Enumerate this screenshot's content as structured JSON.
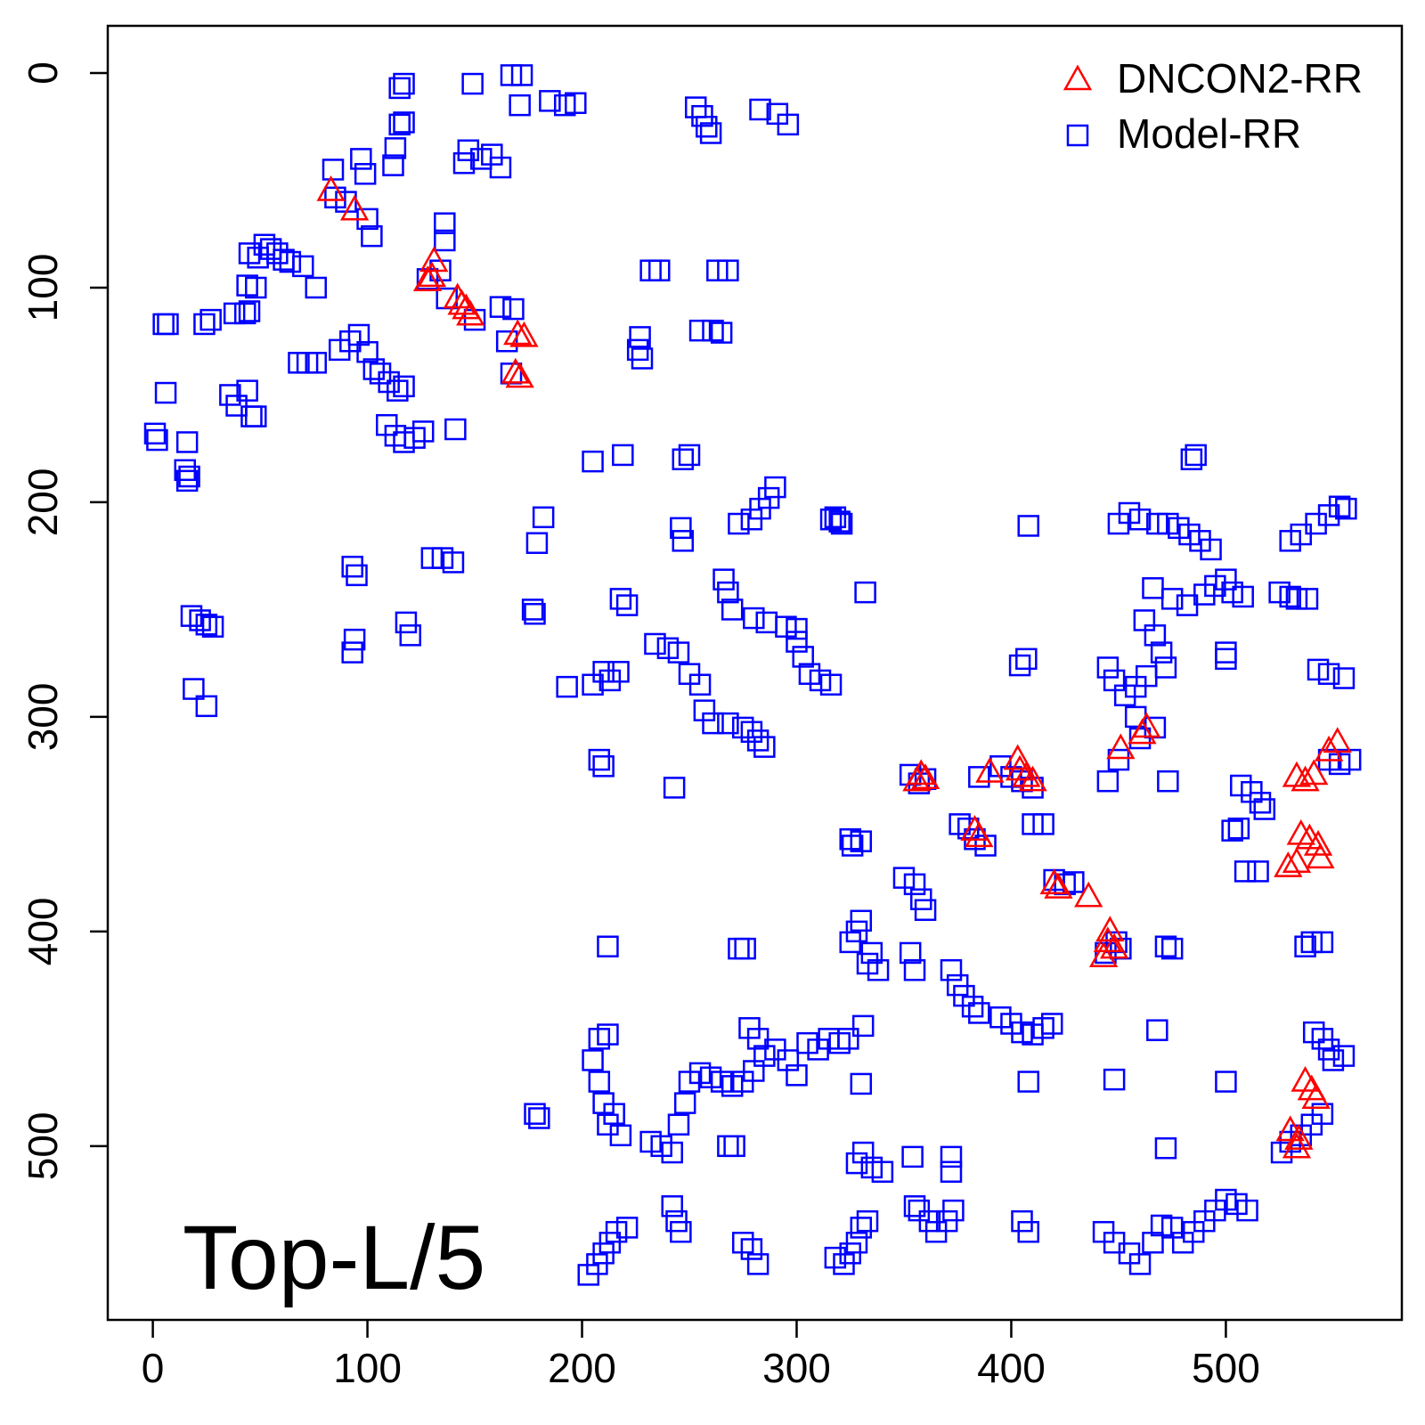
{
  "chart_data": {
    "type": "scatter",
    "annotation": "Top-L/5",
    "xlim": [
      -21,
      582
    ],
    "ylim": [
      581,
      -22
    ],
    "xticks": [
      0,
      100,
      200,
      300,
      400,
      500
    ],
    "yticks": [
      0,
      100,
      200,
      300,
      400,
      500
    ],
    "legend": "top-right",
    "series": [
      {
        "name": "DNCON2-RR",
        "color": "#ff0000",
        "marker": "triangle",
        "x": [
          83,
          94,
          131,
          130,
          128,
          142,
          144,
          146,
          148,
          170,
          173,
          169,
          171,
          358,
          360,
          356,
          390,
          403,
          404,
          407,
          410,
          383,
          385,
          420,
          422,
          436,
          446,
          445,
          448,
          443,
          451,
          461,
          463,
          552,
          548,
          533,
          537,
          541,
          535,
          539,
          543,
          544,
          533,
          529,
          537,
          540,
          542,
          530,
          534,
          533
        ],
        "y": [
          55,
          64,
          88,
          95,
          97,
          105,
          108,
          110,
          113,
          122,
          123,
          140,
          142,
          327,
          329,
          330,
          326,
          320,
          325,
          328,
          330,
          353,
          356,
          378,
          380,
          384,
          400,
          405,
          408,
          412,
          315,
          308,
          305,
          312,
          316,
          328,
          330,
          327,
          355,
          357,
          360,
          366,
          368,
          370,
          470,
          474,
          478,
          493,
          497,
          501
        ]
      },
      {
        "name": "Model-RR",
        "color": "#0000ff",
        "marker": "square",
        "x": [
          115,
          117,
          149,
          167,
          172,
          171,
          185,
          192,
          197,
          253,
          256,
          258,
          260,
          283,
          291,
          296,
          115,
          117,
          113,
          112,
          97,
          99,
          84,
          85,
          90,
          100,
          102,
          136,
          136,
          145,
          147,
          153,
          158,
          162,
          52,
          55,
          58,
          61,
          64,
          70,
          45,
          49,
          44,
          48,
          76,
          38,
          43,
          45,
          5,
          7,
          24,
          27,
          6,
          36,
          39,
          44,
          46,
          48,
          1,
          2,
          16,
          15,
          16,
          17,
          68,
          72,
          76,
          87,
          92,
          96,
          100,
          103,
          106,
          110,
          114,
          117,
          109,
          113,
          117,
          122,
          126,
          141,
          128,
          134,
          137,
          150,
          162,
          168,
          165,
          167,
          205,
          219,
          250,
          247,
          182,
          179,
          177,
          178,
          93,
          95,
          130,
          135,
          140,
          118,
          120,
          94,
          93,
          18,
          22,
          25,
          28,
          19,
          25,
          210,
          213,
          217,
          205,
          193,
          221,
          218,
          234,
          240,
          245,
          250,
          255,
          257,
          261,
          268,
          275,
          279,
          282,
          285,
          208,
          210,
          243,
          246,
          247,
          266,
          268,
          270,
          280,
          286,
          295,
          300,
          303,
          306,
          311,
          316,
          300,
          273,
          279,
          283,
          287,
          290,
          316,
          321,
          232,
          236,
          263,
          268,
          255,
          261,
          265,
          227,
          226,
          228,
          332,
          325,
          330,
          326,
          353,
          357,
          360,
          395,
          400,
          405,
          410,
          385,
          376,
          380,
          383,
          388,
          410,
          415,
          404,
          407,
          408,
          320,
          318,
          450,
          455,
          460,
          468,
          473,
          478,
          483,
          488,
          493,
          486,
          484,
          466,
          475,
          482,
          490,
          495,
          500,
          503,
          508,
          462,
          467,
          470,
          472,
          463,
          458,
          453,
          445,
          448,
          458,
          467,
          460,
          450,
          445,
          473,
          500,
          500,
          525,
          530,
          533,
          538,
          553,
          556,
          548,
          542,
          535,
          530,
          543,
          548,
          555,
          548,
          553,
          558,
          507,
          512,
          516,
          518,
          503,
          506,
          509,
          515,
          273,
          276,
          212,
          330,
          328,
          325,
          335,
          333,
          338,
          350,
          355,
          358,
          360,
          353,
          355,
          372,
          375,
          378,
          382,
          385,
          395,
          400,
          405,
          410,
          415,
          419,
          420,
          425,
          429,
          444,
          449,
          451,
          472,
          475,
          537,
          540,
          545,
          468,
          448,
          408,
          331,
          330,
          500,
          472,
          178,
          180,
          205,
          208,
          210,
          212,
          215,
          218,
          208,
          212,
          232,
          237,
          242,
          245,
          248,
          250,
          255,
          260,
          265,
          270,
          275,
          280,
          285,
          290,
          296,
          300,
          305,
          310,
          315,
          320,
          324,
          278,
          282,
          268,
          271,
          242,
          244,
          246,
          203,
          207,
          210,
          213,
          216,
          221,
          275,
          279,
          282,
          318,
          322,
          325,
          328,
          330,
          333,
          328,
          331,
          335,
          340,
          354,
          355,
          357,
          362,
          365,
          370,
          373,
          372,
          372,
          405,
          408,
          443,
          448,
          455,
          460,
          466,
          470,
          475,
          480,
          485,
          490,
          495,
          500,
          505,
          510,
          526,
          530,
          535,
          540,
          545,
          550,
          555,
          541,
          545,
          548
        ],
        "y": [
          7,
          5,
          5,
          1,
          1,
          15,
          13,
          15,
          14,
          16,
          20,
          25,
          28,
          17,
          19,
          24,
          24,
          23,
          35,
          43,
          40,
          47,
          45,
          58,
          60,
          68,
          76,
          70,
          78,
          42,
          36,
          40,
          38,
          44,
          80,
          82,
          84,
          87,
          88,
          90,
          84,
          86,
          99,
          100,
          100,
          112,
          112,
          111,
          117,
          117,
          117,
          115,
          149,
          150,
          155,
          148,
          160,
          160,
          168,
          171,
          172,
          185,
          190,
          188,
          135,
          135,
          135,
          129,
          125,
          122,
          130,
          138,
          140,
          144,
          148,
          146,
          164,
          169,
          172,
          170,
          167,
          166,
          96,
          92,
          105,
          115,
          109,
          110,
          125,
          140,
          181,
          178,
          178,
          180,
          207,
          219,
          250,
          252,
          230,
          234,
          226,
          226,
          228,
          256,
          262,
          264,
          270,
          253,
          255,
          257,
          258,
          287,
          295,
          279,
          283,
          279,
          285,
          286,
          248,
          245,
          266,
          268,
          270,
          280,
          285,
          297,
          303,
          303,
          305,
          307,
          311,
          314,
          320,
          323,
          333,
          212,
          218,
          236,
          242,
          250,
          254,
          256,
          258,
          265,
          272,
          280,
          283,
          285,
          259,
          210,
          208,
          203,
          198,
          193,
          208,
          210,
          92,
          92,
          92,
          92,
          120,
          120,
          121,
          123,
          129,
          133,
          242,
          357,
          358,
          360,
          327,
          331,
          329,
          323,
          328,
          330,
          333,
          328,
          350,
          352,
          357,
          360,
          350,
          350,
          276,
          273,
          211,
          209,
          207,
          210,
          205,
          208,
          210,
          210,
          212,
          215,
          218,
          222,
          178,
          180,
          240,
          245,
          248,
          243,
          239,
          236,
          242,
          244,
          255,
          262,
          270,
          277,
          281,
          286,
          290,
          277,
          283,
          300,
          305,
          310,
          320,
          330,
          330,
          270,
          273,
          242,
          244,
          245,
          245,
          202,
          203,
          206,
          210,
          215,
          218,
          278,
          280,
          282,
          320,
          322,
          320,
          332,
          335,
          340,
          343,
          353,
          352,
          372,
          372,
          408,
          408,
          407,
          395,
          400,
          405,
          410,
          415,
          418,
          375,
          378,
          385,
          390,
          410,
          418,
          418,
          425,
          430,
          435,
          438,
          440,
          443,
          447,
          448,
          445,
          443,
          376,
          378,
          377,
          410,
          405,
          408,
          407,
          408,
          407,
          405,
          405,
          446,
          469,
          470,
          444,
          471,
          470,
          501,
          485,
          487,
          460,
          470,
          480,
          490,
          485,
          495,
          450,
          448,
          498,
          500,
          503,
          490,
          480,
          470,
          466,
          468,
          470,
          472,
          470,
          465,
          458,
          455,
          460,
          467,
          452,
          455,
          450,
          452,
          450,
          445,
          450,
          500,
          500,
          528,
          535,
          540,
          560,
          555,
          550,
          545,
          540,
          538,
          545,
          548,
          555,
          552,
          555,
          550,
          545,
          538,
          535,
          508,
          503,
          510,
          512,
          505,
          528,
          530,
          535,
          540,
          535,
          530,
          505,
          512,
          535,
          540,
          540,
          545,
          550,
          555,
          545,
          537,
          538,
          545,
          540,
          535,
          530,
          525,
          527,
          530,
          503,
          498,
          495,
          490,
          485,
          460,
          458,
          447,
          450,
          455
        ]
      }
    ]
  }
}
